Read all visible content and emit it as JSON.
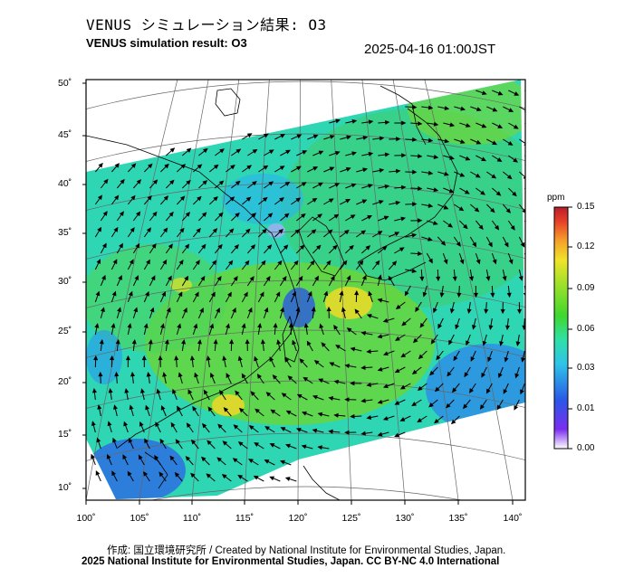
{
  "header": {
    "title_jp": "VENUS シミュレーション結果: O3",
    "title_en": "VENUS simulation result: O3",
    "timestamp": "2025-04-16 01:00JST"
  },
  "map": {
    "lat_labels": [
      "50˚",
      "45˚",
      "40˚",
      "35˚",
      "30˚",
      "25˚",
      "20˚",
      "15˚",
      "10˚"
    ],
    "lon_labels": [
      "100˚",
      "105˚",
      "110˚",
      "115˚",
      "120˚",
      "125˚",
      "130˚",
      "135˚",
      "140˚"
    ],
    "colors": {
      "field_low": "#2f7ee0",
      "field_mid": "#27d9c9",
      "field_high": "#5fd12f",
      "field_peak": "#e9dc2a",
      "land": "#ffffff",
      "coast": "#000000",
      "arrow": "#000000"
    }
  },
  "colorbar": {
    "unit": "ppm",
    "ticks": [
      "0.15",
      "0.12",
      "0.09",
      "0.06",
      "0.03",
      "0.01",
      "0.00"
    ],
    "colors": [
      "#ffffff",
      "#7b2df0",
      "#2a57e6",
      "#2ec4e8",
      "#2fe0a8",
      "#3fd82f",
      "#9ee02a",
      "#f0e42a",
      "#f5a12a",
      "#e8402a",
      "#b81e2a"
    ]
  },
  "footer": {
    "credit": "作成: 国立環境研究所 / Created by National Institute for Environmental Studies, Japan.",
    "copyright": "2025 National Institute for Environmental Studies, Japan. CC BY-NC 4.0 International"
  }
}
